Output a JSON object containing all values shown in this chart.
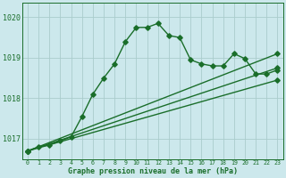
{
  "title": "Graphe pression niveau de la mer (hPa)",
  "background_color": "#cce8ec",
  "grid_color": "#aacccc",
  "line_color": "#1a6e2a",
  "xlim": [
    -0.5,
    23.5
  ],
  "ylim": [
    1016.5,
    1020.35
  ],
  "yticks": [
    1017,
    1018,
    1019,
    1020
  ],
  "xticks": [
    0,
    1,
    2,
    3,
    4,
    5,
    6,
    7,
    8,
    9,
    10,
    11,
    12,
    13,
    14,
    15,
    16,
    17,
    18,
    19,
    20,
    21,
    22,
    23
  ],
  "series": [
    {
      "x": [
        0,
        1,
        2,
        3,
        4,
        5,
        6,
        7,
        8,
        9,
        10,
        11,
        12,
        13,
        14,
        15,
        16,
        17,
        18,
        19,
        20,
        21,
        22,
        23
      ],
      "y": [
        1016.7,
        1016.8,
        1016.85,
        1016.95,
        1017.05,
        1017.55,
        1018.1,
        1018.5,
        1018.85,
        1019.4,
        1019.75,
        1019.75,
        1019.85,
        1019.55,
        1019.5,
        1018.95,
        1018.85,
        1018.8,
        1018.8,
        1019.1,
        1018.98,
        1018.6,
        1018.6,
        1018.7
      ],
      "marker": "D",
      "markersize": 2.8,
      "linewidth": 1.0,
      "solid": true
    },
    {
      "x": [
        0,
        23
      ],
      "y": [
        1016.7,
        1019.1
      ],
      "marker": "D",
      "markersize": 2.8,
      "linewidth": 1.0,
      "solid": true
    },
    {
      "x": [
        0,
        23
      ],
      "y": [
        1016.7,
        1018.75
      ],
      "marker": "D",
      "markersize": 2.8,
      "linewidth": 1.0,
      "solid": true
    },
    {
      "x": [
        0,
        23
      ],
      "y": [
        1016.7,
        1018.45
      ],
      "marker": "D",
      "markersize": 2.8,
      "linewidth": 1.0,
      "solid": true
    }
  ]
}
